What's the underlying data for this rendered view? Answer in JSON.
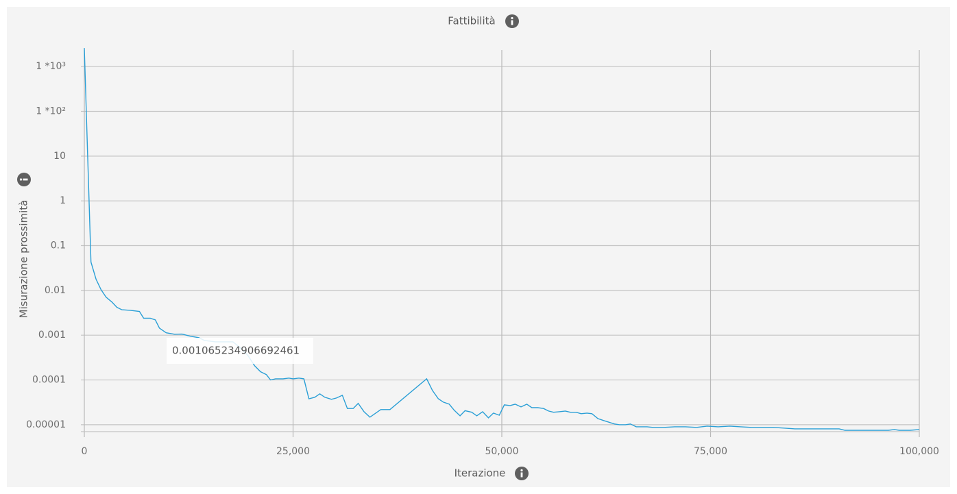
{
  "chart_data": {
    "type": "line",
    "title": "Fattibilità",
    "x_label": "Iterazione",
    "y_label": "Misurazione prossimità",
    "tooltip": "0.001065234906692461",
    "color": "#2a9fd6",
    "log_y": true,
    "grid": true,
    "xlim": [
      0,
      100000
    ],
    "ylim": [
      7e-06,
      2700
    ],
    "xticks": [
      0,
      {
        "value": 25000,
        "label": "25,000"
      },
      {
        "value": 50000,
        "label": "50,000"
      },
      {
        "value": 75000,
        "label": "75,000"
      },
      {
        "value": 100000,
        "label": "100,000"
      }
    ],
    "yticks": [
      {
        "value": 1000,
        "label": "1 *10³"
      },
      {
        "value": 100,
        "label": "1 *10²"
      },
      10,
      1,
      0.1,
      0.01,
      0.001,
      0.0001,
      1e-05
    ],
    "x": [
      0,
      800,
      1400,
      2000,
      2600,
      3300,
      3900,
      4500,
      5500,
      6600,
      7100,
      7900,
      8500,
      9000,
      9800,
      10800,
      11700,
      12700,
      13700,
      14400,
      15700,
      17800,
      18600,
      19600,
      20400,
      21100,
      21800,
      22300,
      22900,
      23800,
      24500,
      25000,
      25700,
      26300,
      26900,
      27600,
      28200,
      28800,
      29600,
      30200,
      30900,
      31500,
      32200,
      32800,
      33500,
      34200,
      35500,
      36600,
      41000,
      41700,
      42400,
      43000,
      43700,
      44300,
      45000,
      45600,
      46400,
      47000,
      47700,
      48400,
      49000,
      49700,
      50300,
      51000,
      51600,
      52300,
      53000,
      53600,
      54300,
      55000,
      55600,
      56200,
      56900,
      57600,
      58200,
      58900,
      59500,
      60200,
      60800,
      61500,
      62200,
      63500,
      64100,
      64800,
      65400,
      66100,
      67400,
      68100,
      69400,
      70700,
      72000,
      73300,
      74600,
      75900,
      77300,
      78600,
      79900,
      81200,
      82500,
      83800,
      85100,
      86500,
      87800,
      89100,
      90400,
      91100,
      92400,
      93700,
      95000,
      96300,
      97000,
      97600,
      98900,
      100000
    ],
    "values": [
      2600,
      0.043,
      0.0178,
      0.0104,
      0.0071,
      0.0055,
      0.0042,
      0.0037,
      0.0036,
      0.0034,
      0.0024,
      0.0024,
      0.0022,
      0.00144,
      0.00113,
      0.00105,
      0.00106,
      0.00095,
      0.00088,
      0.00076,
      0.00071,
      0.00071,
      0.00054,
      0.00035,
      0.000207,
      0.000153,
      0.000132,
      0.0001,
      0.000106,
      0.000106,
      0.00011,
      0.000106,
      0.00011,
      0.000106,
      3.8e-05,
      4.1e-05,
      4.9e-05,
      4.1e-05,
      3.7e-05,
      3.95e-05,
      4.55e-05,
      2.3e-05,
      2.3e-05,
      3e-05,
      1.95e-05,
      1.47e-05,
      2.18e-05,
      2.18e-05,
      0.000106,
      5.8e-05,
      3.8e-05,
      3.2e-05,
      2.88e-05,
      2.1e-05,
      1.58e-05,
      2.06e-05,
      1.9e-05,
      1.58e-05,
      1.95e-05,
      1.42e-05,
      1.82e-05,
      1.63e-05,
      2.78e-05,
      2.68e-05,
      2.88e-05,
      2.5e-05,
      2.88e-05,
      2.4e-05,
      2.4e-05,
      2.3e-05,
      2.02e-05,
      1.9e-05,
      1.95e-05,
      2.02e-05,
      1.9e-05,
      1.9e-05,
      1.76e-05,
      1.82e-05,
      1.76e-05,
      1.37e-05,
      1.24e-05,
      1.04e-05,
      1e-05,
      1e-05,
      1.04e-05,
      9e-06,
      9e-06,
      8.7e-06,
      8.7e-06,
      9e-06,
      9e-06,
      8.7e-06,
      9.3e-06,
      9e-06,
      9.3e-06,
      9e-06,
      8.7e-06,
      8.7e-06,
      8.7e-06,
      8.4e-06,
      8.1e-06,
      8.1e-06,
      8.1e-06,
      8.1e-06,
      8.1e-06,
      7.5e-06,
      7.5e-06,
      7.5e-06,
      7.5e-06,
      7.5e-06,
      7.8e-06,
      7.5e-06,
      7.5e-06,
      7.8e-06
    ]
  }
}
